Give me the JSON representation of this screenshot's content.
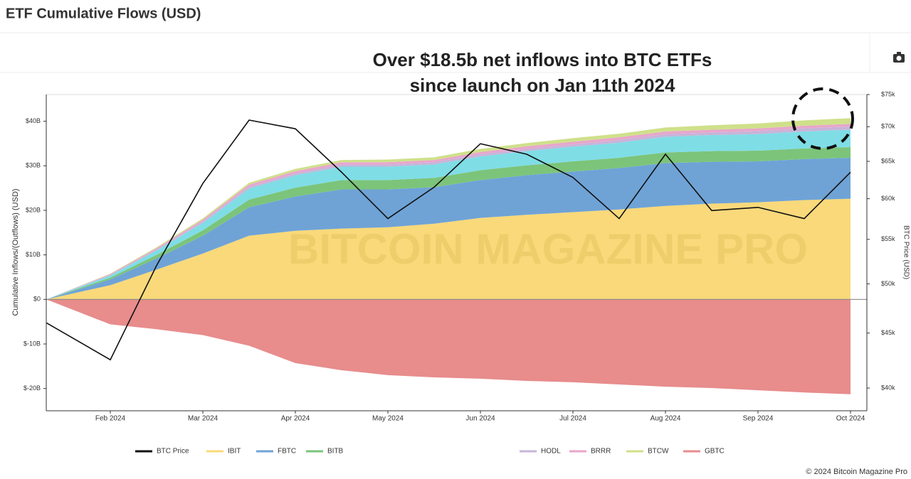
{
  "chart_data": {
    "type": "stacked-area-line",
    "title": "ETF Cumulative Flows (USD)",
    "annotation": [
      "Over $18.5b net inflows into BTC ETFs",
      "since launch on Jan 11th 2024"
    ],
    "watermark": "BITCOIN MAGAZINE PRO",
    "footer": "© 2024 Bitcoin Magazine Pro",
    "ylabel": "Cumulative Inflows/(Outflows) (USD)",
    "y2label": "BTC Price (USD)",
    "categories": [
      null,
      "Feb 2024",
      null,
      "Mar 2024",
      null,
      "Apr 2024",
      null,
      "May 2024",
      null,
      "Jun 2024",
      null,
      "Jul 2024",
      null,
      "Aug 2024",
      null,
      "Sep 2024",
      null,
      "Oct 2024"
    ],
    "ylim": [
      -25,
      46
    ],
    "yticks": [
      {
        "value": -20,
        "label": "$-20B"
      },
      {
        "value": -10,
        "label": "$-10B"
      },
      {
        "value": 0,
        "label": "$0"
      },
      {
        "value": 10,
        "label": "$10B"
      },
      {
        "value": 20,
        "label": "$20B"
      },
      {
        "value": 30,
        "label": "$30B"
      },
      {
        "value": 40,
        "label": "$40B"
      }
    ],
    "y2lim": [
      38100,
      75000
    ],
    "y2scale": "log",
    "y2ticks": [
      {
        "value": 40000,
        "label": "$40k"
      },
      {
        "value": 45000,
        "label": "$45k"
      },
      {
        "value": 50000,
        "label": "$50k"
      },
      {
        "value": 55000,
        "label": "$55k"
      },
      {
        "value": 60000,
        "label": "$60k"
      },
      {
        "value": 65000,
        "label": "$65k"
      },
      {
        "value": 70000,
        "label": "$70k"
      },
      {
        "value": 75000,
        "label": "$75k"
      }
    ],
    "series": [
      {
        "name": "BTC Price",
        "color": "#111111",
        "kind": "line",
        "axis": "y2",
        "values": [
          46000,
          42500,
          52000,
          62000,
          71000,
          69700,
          63500,
          57500,
          61500,
          67500,
          66000,
          62800,
          57500,
          66000,
          58500,
          58900,
          57500,
          63500
        ]
      },
      {
        "name": "IBIT",
        "color": "#f9d97a",
        "kind": "area",
        "values": [
          0,
          3.2,
          6.7,
          10.3,
          14.3,
          15.4,
          15.9,
          16.2,
          17,
          18.3,
          19,
          19.6,
          20.2,
          21,
          21.5,
          21.8,
          22.3,
          22.6
        ]
      },
      {
        "name": "FBTC",
        "color": "#6fa3d6",
        "kind": "area",
        "values": [
          0,
          1.3,
          2.5,
          4.0,
          6.4,
          7.7,
          8.8,
          8.5,
          8.2,
          8.5,
          8.9,
          9.1,
          9.3,
          9.6,
          9.4,
          9.2,
          9.2,
          9.2
        ]
      },
      {
        "name": "BITB",
        "color": "#7cc47a",
        "kind": "area",
        "values": [
          0,
          0.4,
          0.8,
          1.2,
          1.7,
          2.0,
          2.1,
          2.1,
          2.1,
          2.2,
          2.2,
          2.3,
          2.3,
          2.4,
          2.4,
          2.4,
          2.4,
          2.4
        ]
      },
      {
        "name": null,
        "color": "#7fdde6",
        "kind": "area",
        "values": [
          0,
          0.5,
          1.0,
          1.7,
          2.5,
          2.8,
          3.0,
          3.0,
          3.0,
          3.1,
          3.2,
          3.3,
          3.4,
          3.5,
          3.6,
          3.7,
          3.8,
          3.9
        ]
      },
      {
        "name": "HODL",
        "color": "#c8b4d8",
        "kind": "area",
        "values": [
          0,
          0.1,
          0.2,
          0.3,
          0.4,
          0.4,
          0.5,
          0.5,
          0.5,
          0.5,
          0.5,
          0.5,
          0.6,
          0.6,
          0.6,
          0.7,
          0.7,
          0.7
        ]
      },
      {
        "name": "BRRR",
        "color": "#e8a6cc",
        "kind": "area",
        "values": [
          0,
          0.2,
          0.3,
          0.4,
          0.5,
          0.5,
          0.5,
          0.5,
          0.5,
          0.5,
          0.6,
          0.6,
          0.6,
          0.6,
          0.6,
          0.6,
          0.6,
          0.6
        ]
      },
      {
        "name": "BTCW",
        "color": "#cfe08a",
        "kind": "area",
        "values": [
          0,
          0.1,
          0.2,
          0.3,
          0.4,
          0.5,
          0.5,
          0.6,
          0.6,
          0.7,
          0.7,
          0.8,
          0.8,
          0.9,
          1.0,
          1.1,
          1.2,
          1.3
        ]
      },
      {
        "name": "GBTC",
        "color": "#e88c8c",
        "kind": "area",
        "values": [
          0,
          -5.6,
          -6.7,
          -8.0,
          -10.4,
          -14.3,
          -15.9,
          -17,
          -17.5,
          -17.8,
          -18.3,
          -18.6,
          -19.1,
          -19.6,
          -19.9,
          -20.4,
          -20.9,
          -21.3
        ]
      }
    ]
  }
}
